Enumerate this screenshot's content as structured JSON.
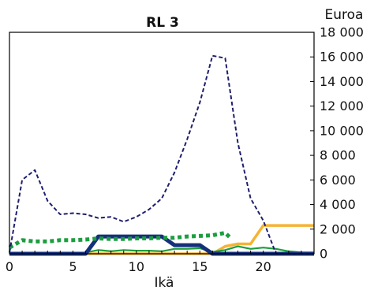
{
  "chart_data": {
    "type": "line",
    "title": "RL 3",
    "unit_label": "Euroa",
    "xlabel": "Ikä",
    "ylabel": "",
    "xlim": [
      0,
      24
    ],
    "ylim": [
      0,
      18000
    ],
    "y_axis_side": "right",
    "grid": false,
    "x_ticks": [
      0,
      5,
      10,
      15,
      20
    ],
    "y_ticks": [
      0,
      2000,
      4000,
      6000,
      8000,
      10000,
      12000,
      14000,
      16000,
      18000
    ],
    "y_tick_labels": [
      "0",
      "2 000",
      "4 000",
      "6 000",
      "8 000",
      "10 000",
      "12 000",
      "14 000",
      "16 000",
      "18 000"
    ],
    "x_tick_labels": [
      "0",
      "5",
      "10",
      "15",
      "20"
    ],
    "series": [
      {
        "color": "#1f1f6e",
        "style": "dashed-thin",
        "x": [
          0,
          1,
          2,
          3,
          4,
          5,
          6,
          7,
          8,
          9,
          10,
          11,
          12,
          13,
          14,
          15,
          16,
          17,
          18,
          19,
          20,
          21,
          22,
          23,
          24
        ],
        "values": [
          100,
          6000,
          6800,
          4300,
          3200,
          3300,
          3200,
          2900,
          3000,
          2600,
          3000,
          3600,
          4500,
          6600,
          9300,
          12300,
          16100,
          15900,
          9000,
          4500,
          2700,
          0,
          0,
          0,
          0
        ]
      },
      {
        "color": "#1b9e3e",
        "style": "dotted-thick",
        "x": [
          0,
          1,
          2,
          3,
          4,
          5,
          6,
          7,
          8,
          9,
          10,
          11,
          12,
          13,
          14,
          15,
          16,
          17,
          17.5
        ],
        "values": [
          500,
          1100,
          1000,
          1000,
          1100,
          1100,
          1150,
          1250,
          1200,
          1200,
          1250,
          1250,
          1300,
          1300,
          1400,
          1450,
          1500,
          1700,
          1200
        ]
      },
      {
        "color": "#15307a",
        "style": "solid-thick",
        "x": [
          0,
          6,
          7,
          8,
          9,
          10,
          11,
          12,
          13,
          14,
          15,
          16,
          17,
          18,
          19,
          20,
          21,
          22,
          23,
          24
        ],
        "values": [
          0,
          0,
          1400,
          1400,
          1400,
          1400,
          1400,
          1400,
          700,
          700,
          700,
          0,
          0,
          0,
          0,
          0,
          0,
          0,
          0,
          0
        ]
      },
      {
        "color": "#1b9e3e",
        "style": "solid-thin",
        "x": [
          0,
          5,
          6,
          7,
          8,
          9,
          10,
          11,
          12,
          13,
          14,
          15,
          16,
          17,
          18,
          19,
          20,
          21,
          22,
          23,
          24
        ],
        "values": [
          0,
          0,
          100,
          300,
          200,
          300,
          250,
          250,
          200,
          400,
          400,
          450,
          150,
          300,
          600,
          400,
          500,
          400,
          200,
          100,
          100
        ]
      },
      {
        "color": "#f5b335",
        "style": "solid-medium",
        "x": [
          0,
          15,
          16,
          17,
          18,
          19,
          20,
          21,
          22,
          23,
          24
        ],
        "values": [
          0,
          0,
          0,
          600,
          800,
          800,
          2300,
          2300,
          2300,
          2300,
          2300
        ]
      },
      {
        "color": "#8b2a2a",
        "style": "solid-thin",
        "x": [
          0,
          6
        ],
        "values": [
          0,
          0
        ]
      }
    ]
  }
}
